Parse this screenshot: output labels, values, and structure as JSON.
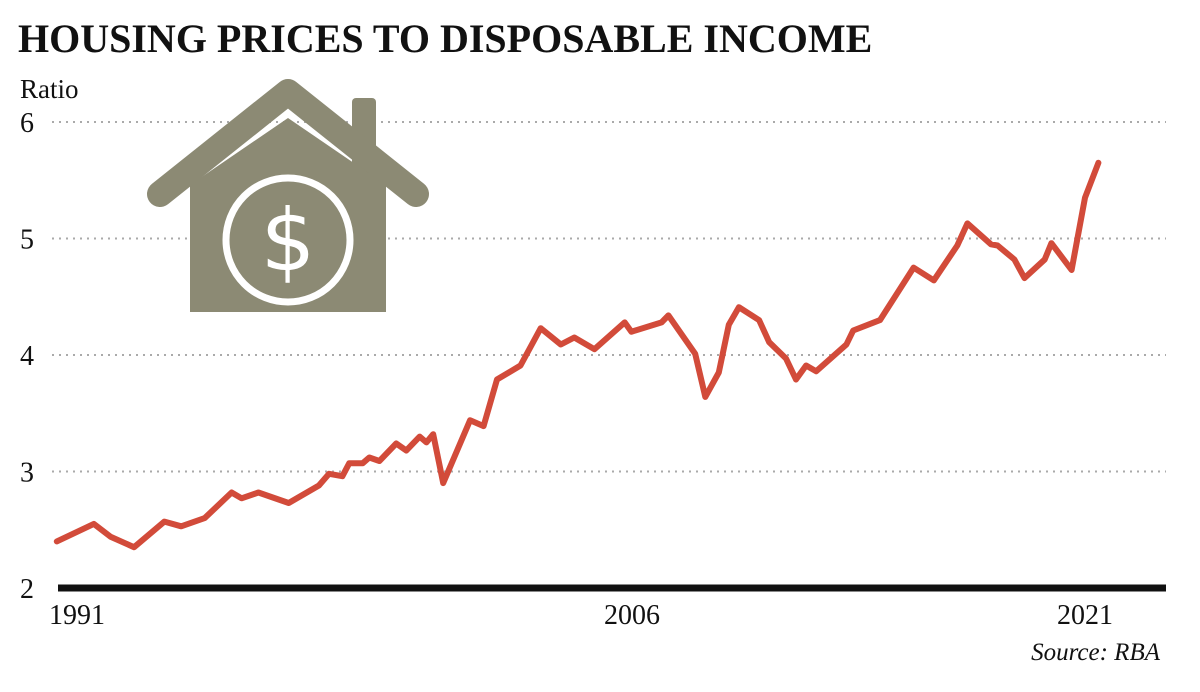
{
  "chart_data": {
    "type": "line",
    "title": "HOUSING PRICES TO DISPOSABLE INCOME",
    "ylabel": "Ratio",
    "xlabel": "",
    "source": "Source: RBA",
    "ylim": [
      2,
      6
    ],
    "yticks": [
      2,
      3,
      4,
      5,
      6
    ],
    "xticks": [
      1991,
      2006,
      2021
    ],
    "grid": "horizontal dotted",
    "legend": "none",
    "colors": {
      "line": "#d24b3a",
      "icon": "#8c8a74",
      "axis": "#111111",
      "grid": "#aaaaaa"
    },
    "icon": "house-dollar-icon",
    "series": [
      {
        "x": [
          1990.4,
          1991.5,
          1992.0,
          1992.7,
          1993.6,
          1994.1,
          1994.8,
          1995.6,
          1995.9,
          1996.4,
          1997.3,
          1998.2,
          1998.5,
          1998.9,
          1999.1,
          1999.5,
          1999.7,
          2000.0,
          2000.5,
          2000.8,
          2001.2,
          2001.4,
          2001.6,
          2001.9,
          2002.7,
          2003.1,
          2003.5,
          2004.2,
          2004.8,
          2005.4,
          2005.8,
          2006.4,
          2007.3,
          2007.5,
          2008.4,
          2008.6,
          2009.4,
          2009.7,
          2010.1,
          2010.4,
          2010.7,
          2011.3,
          2011.6,
          2012.1,
          2012.4,
          2012.7,
          2013.0,
          2013.9,
          2014.1,
          2014.9,
          2015.9,
          2016.5,
          2017.2,
          2017.5,
          2018.2,
          2018.4,
          2018.9,
          2019.2,
          2019.8,
          2020.0,
          2020.6,
          2021.0,
          2021.4
        ],
        "y": [
          2.4,
          2.55,
          2.44,
          2.35,
          2.57,
          2.53,
          2.6,
          2.82,
          2.77,
          2.82,
          2.73,
          2.88,
          2.98,
          2.96,
          3.07,
          3.07,
          3.12,
          3.09,
          3.24,
          3.18,
          3.3,
          3.25,
          3.32,
          2.9,
          3.44,
          3.39,
          3.79,
          3.91,
          4.23,
          4.09,
          4.15,
          4.05,
          4.28,
          4.2,
          4.28,
          4.34,
          4.01,
          3.64,
          3.85,
          4.26,
          4.41,
          4.3,
          4.11,
          3.97,
          3.79,
          3.91,
          3.86,
          4.09,
          4.21,
          4.3,
          4.75,
          4.64,
          4.94,
          5.13,
          4.95,
          4.94,
          4.82,
          4.66,
          4.82,
          4.96,
          4.73,
          5.35,
          5.65
        ]
      }
    ]
  }
}
